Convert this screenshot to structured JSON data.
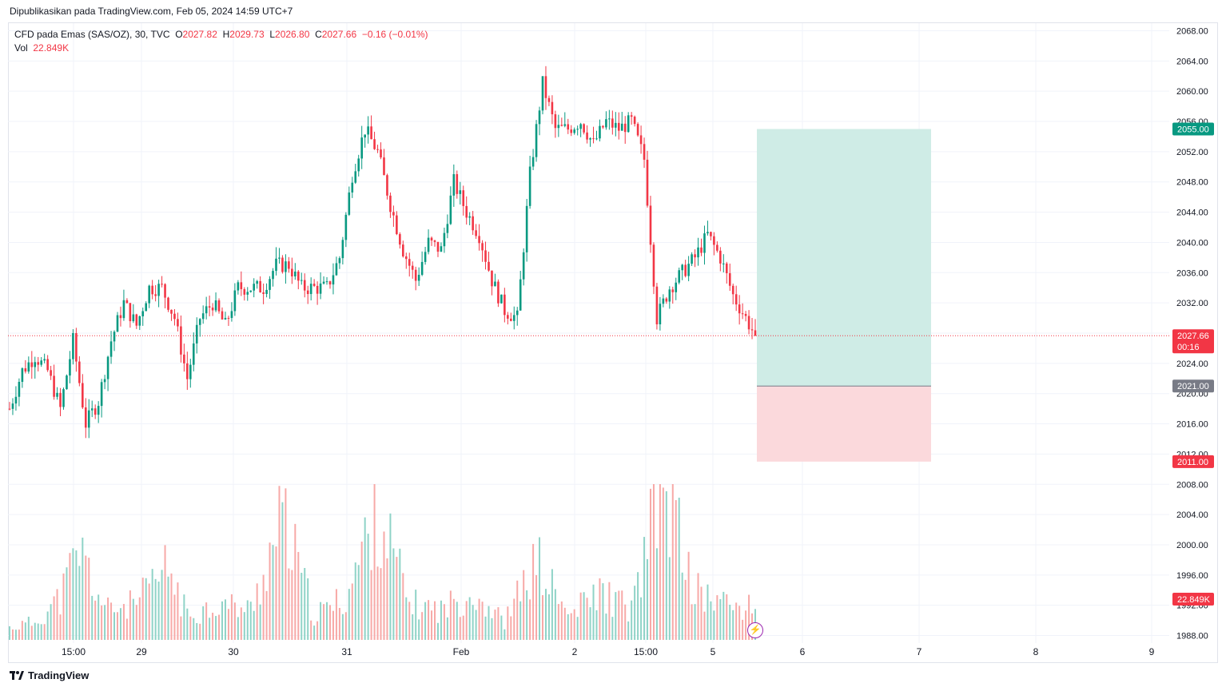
{
  "publish_line": "Dipublikasikan pada TradingView.com, Feb 05, 2024 14:59 UTC+7",
  "legend": {
    "symbol": "CFD pada Emas (SAS/OZ), 30, TVC",
    "o_label": "O",
    "o_value": "2027.82",
    "h_label": "H",
    "h_value": "2029.73",
    "l_label": "L",
    "l_value": "2026.80",
    "c_label": "C",
    "c_value": "2027.66",
    "change": "−0.16 (−0.01%)",
    "vol_label": "Vol",
    "vol_value": "22.849K"
  },
  "footer": {
    "brand": "TradingView"
  },
  "colors": {
    "up": "#089981",
    "down": "#f23645",
    "grid": "#f0f3fa",
    "axis_text": "#131722",
    "profit_zone": "#cfece6",
    "loss_zone": "#fbd9dc",
    "neutral": "#787b86",
    "accent": "#9c27b0"
  },
  "chart_data": {
    "type": "candlestick",
    "title": "CFD pada Emas (SAS/OZ), 30, TVC",
    "timeframe": "30",
    "y_axis": {
      "ylim": [
        1987.0,
        2069.0
      ],
      "ticks": [
        "2068.00",
        "2064.00",
        "2060.00",
        "2056.00",
        "2052.00",
        "2048.00",
        "2044.00",
        "2040.00",
        "2036.00",
        "2032.00",
        "2028.00",
        "2024.00",
        "2020.00",
        "2016.00",
        "2012.00",
        "2008.00",
        "2004.00",
        "2000.00",
        "1996.00",
        "1992.00",
        "1988.00"
      ]
    },
    "x_axis": {
      "ticks": [
        "15:00",
        "29",
        "30",
        "31",
        "Feb",
        "2",
        "15:00",
        "5",
        "6",
        "7",
        "8",
        "9"
      ]
    },
    "last_price": "2027.66",
    "countdown": "00:16",
    "position": {
      "entry": "2021.00",
      "take_profit": "2055.00",
      "stop_loss": "2011.00"
    },
    "volume_last": "22.849K",
    "price_path": [
      [
        0,
        2018
      ],
      [
        4,
        2023
      ],
      [
        8,
        2025
      ],
      [
        12,
        2023
      ],
      [
        16,
        2018
      ],
      [
        20,
        2027
      ],
      [
        24,
        2016
      ],
      [
        28,
        2019
      ],
      [
        32,
        2027
      ],
      [
        36,
        2032
      ],
      [
        40,
        2029
      ],
      [
        44,
        2034
      ],
      [
        48,
        2034
      ],
      [
        52,
        2030
      ],
      [
        56,
        2022
      ],
      [
        60,
        2030
      ],
      [
        64,
        2032
      ],
      [
        68,
        2029
      ],
      [
        72,
        2034
      ],
      [
        76,
        2034
      ],
      [
        80,
        2034
      ],
      [
        84,
        2037
      ],
      [
        88,
        2037
      ],
      [
        92,
        2034
      ],
      [
        96,
        2034
      ],
      [
        100,
        2034
      ],
      [
        104,
        2038
      ],
      [
        108,
        2049
      ],
      [
        112,
        2055
      ],
      [
        116,
        2052
      ],
      [
        120,
        2045
      ],
      [
        124,
        2039
      ],
      [
        128,
        2035
      ],
      [
        132,
        2040
      ],
      [
        136,
        2039
      ],
      [
        140,
        2048
      ],
      [
        144,
        2044
      ],
      [
        148,
        2041
      ],
      [
        152,
        2035
      ],
      [
        156,
        2031
      ],
      [
        160,
        2030
      ],
      [
        164,
        2049
      ],
      [
        168,
        2061
      ],
      [
        172,
        2055
      ],
      [
        176,
        2055
      ],
      [
        180,
        2056
      ],
      [
        184,
        2053
      ],
      [
        188,
        2056
      ],
      [
        192,
        2055
      ],
      [
        196,
        2056
      ],
      [
        200,
        2051
      ],
      [
        204,
        2030
      ],
      [
        208,
        2034
      ],
      [
        212,
        2036
      ],
      [
        216,
        2038
      ],
      [
        220,
        2041
      ],
      [
        224,
        2038
      ],
      [
        228,
        2033
      ],
      [
        232,
        2030
      ],
      [
        235,
        2027.66
      ]
    ],
    "volume_profile": [
      [
        0,
        2
      ],
      [
        8,
        3
      ],
      [
        16,
        7
      ],
      [
        22,
        15
      ],
      [
        30,
        5
      ],
      [
        40,
        6
      ],
      [
        50,
        12
      ],
      [
        56,
        4
      ],
      [
        66,
        6
      ],
      [
        76,
        5
      ],
      [
        86,
        20
      ],
      [
        96,
        4
      ],
      [
        106,
        7
      ],
      [
        116,
        22
      ],
      [
        126,
        6
      ],
      [
        136,
        5
      ],
      [
        146,
        8
      ],
      [
        156,
        3
      ],
      [
        166,
        13
      ],
      [
        176,
        4
      ],
      [
        186,
        8
      ],
      [
        196,
        5
      ],
      [
        206,
        26
      ],
      [
        216,
        8
      ],
      [
        226,
        6
      ],
      [
        235,
        5
      ]
    ]
  }
}
